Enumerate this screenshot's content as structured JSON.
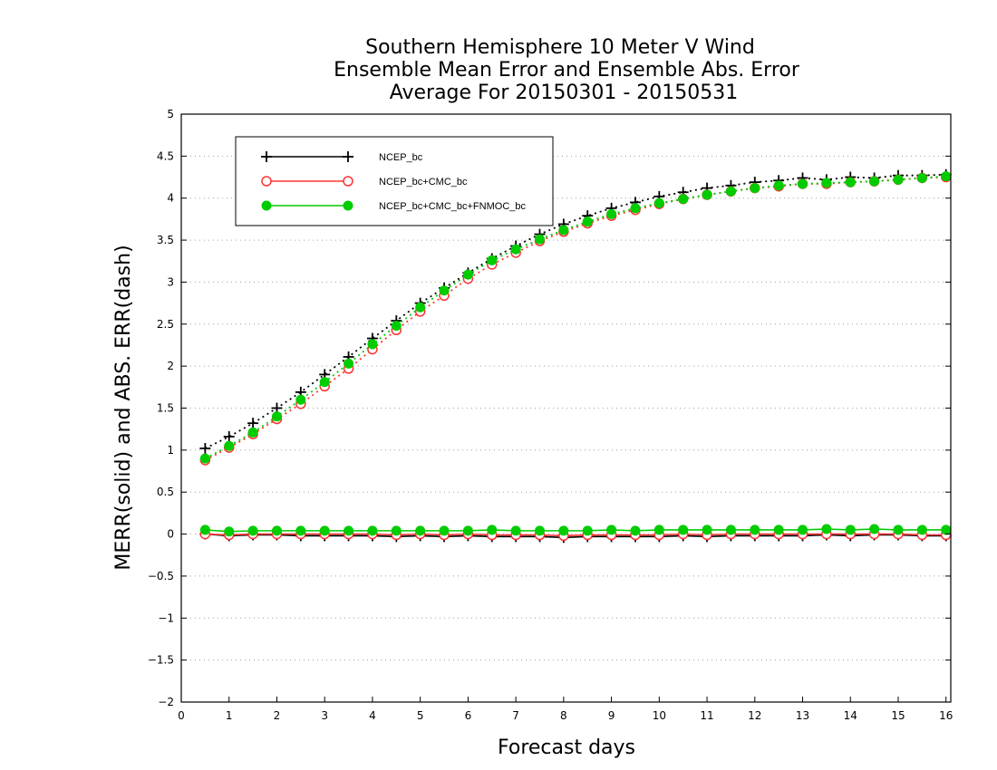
{
  "chart_data": {
    "type": "line",
    "title_lines": [
      "Southern Hemisphere 10 Meter V Wind",
      "Ensemble Mean Error and Ensemble Abs. Error",
      "Average For 20150301 - 20150531"
    ],
    "xlabel": "Forecast days",
    "ylabel": "MERR(solid) and ABS. ERR(dash)",
    "xlim": [
      0,
      16.1
    ],
    "ylim": [
      -2,
      5
    ],
    "xticks": [
      0,
      1,
      2,
      3,
      4,
      5,
      6,
      7,
      8,
      9,
      10,
      11,
      12,
      13,
      14,
      15,
      16
    ],
    "yticks": [
      -2,
      -1.5,
      -1,
      -0.5,
      0,
      0.5,
      1,
      1.5,
      2,
      2.5,
      3,
      3.5,
      4,
      4.5,
      5
    ],
    "ytick_labels": [
      "−2",
      "−1.5",
      "−1",
      "−0.5",
      "0",
      "0.5",
      "1",
      "1.5",
      "2",
      "2.5",
      "3",
      "3.5",
      "4",
      "4.5",
      "5"
    ],
    "grid": "horizontal dotted",
    "legend_position": "top-left",
    "x": [
      0.5,
      1,
      1.5,
      2,
      2.5,
      3,
      3.5,
      4,
      4.5,
      5,
      5.5,
      6,
      6.5,
      7,
      7.5,
      8,
      8.5,
      9,
      9.5,
      10,
      10.5,
      11,
      11.5,
      12,
      12.5,
      13,
      13.5,
      14,
      14.5,
      15,
      15.5,
      16
    ],
    "series": [
      {
        "name": "NCEP_bc",
        "color": "#000000",
        "marker": "plus",
        "mean_error": [
          0.0,
          -0.02,
          -0.01,
          -0.01,
          -0.02,
          -0.02,
          -0.02,
          -0.02,
          -0.03,
          -0.02,
          -0.03,
          -0.02,
          -0.03,
          -0.03,
          -0.03,
          -0.04,
          -0.03,
          -0.03,
          -0.03,
          -0.03,
          -0.02,
          -0.03,
          -0.02,
          -0.02,
          -0.02,
          -0.02,
          -0.01,
          -0.02,
          -0.01,
          -0.01,
          -0.02,
          -0.02
        ],
        "abs_error": [
          1.02,
          1.16,
          1.32,
          1.5,
          1.69,
          1.9,
          2.11,
          2.33,
          2.54,
          2.75,
          2.93,
          3.11,
          3.28,
          3.43,
          3.57,
          3.69,
          3.79,
          3.88,
          3.95,
          4.02,
          4.07,
          4.12,
          4.15,
          4.19,
          4.21,
          4.24,
          4.22,
          4.25,
          4.24,
          4.27,
          4.27,
          4.28
        ]
      },
      {
        "name": "NCEP_bc+CMC_bc",
        "color": "#ff3333",
        "marker": "open-circle",
        "mean_error": [
          0.0,
          -0.01,
          0.0,
          0.0,
          0.0,
          0.0,
          0.0,
          0.0,
          -0.01,
          0.0,
          -0.01,
          0.0,
          -0.01,
          -0.01,
          -0.01,
          -0.02,
          -0.01,
          -0.01,
          -0.01,
          -0.01,
          0.0,
          -0.01,
          0.0,
          0.0,
          0.0,
          0.0,
          0.0,
          0.0,
          0.0,
          0.0,
          -0.01,
          -0.01
        ],
        "abs_error": [
          0.88,
          1.03,
          1.19,
          1.37,
          1.55,
          1.76,
          1.97,
          2.2,
          2.43,
          2.65,
          2.84,
          3.04,
          3.21,
          3.35,
          3.49,
          3.6,
          3.7,
          3.79,
          3.86,
          3.93,
          3.99,
          4.04,
          4.08,
          4.12,
          4.14,
          4.17,
          4.17,
          4.19,
          4.2,
          4.22,
          4.24,
          4.25
        ]
      },
      {
        "name": "NCEP_bc+CMC_bc+FNMOC_bc",
        "color": "#00cc00",
        "marker": "filled-circle",
        "mean_error": [
          0.05,
          0.03,
          0.04,
          0.04,
          0.04,
          0.04,
          0.04,
          0.04,
          0.04,
          0.04,
          0.04,
          0.04,
          0.05,
          0.04,
          0.04,
          0.04,
          0.04,
          0.05,
          0.04,
          0.05,
          0.05,
          0.05,
          0.05,
          0.05,
          0.05,
          0.05,
          0.06,
          0.05,
          0.06,
          0.05,
          0.05,
          0.05
        ],
        "abs_error": [
          0.9,
          1.05,
          1.21,
          1.4,
          1.6,
          1.81,
          2.03,
          2.26,
          2.48,
          2.7,
          2.9,
          3.09,
          3.26,
          3.39,
          3.51,
          3.62,
          3.72,
          3.81,
          3.88,
          3.94,
          3.99,
          4.04,
          4.08,
          4.12,
          4.15,
          4.17,
          4.18,
          4.19,
          4.2,
          4.22,
          4.24,
          4.26
        ]
      }
    ]
  }
}
